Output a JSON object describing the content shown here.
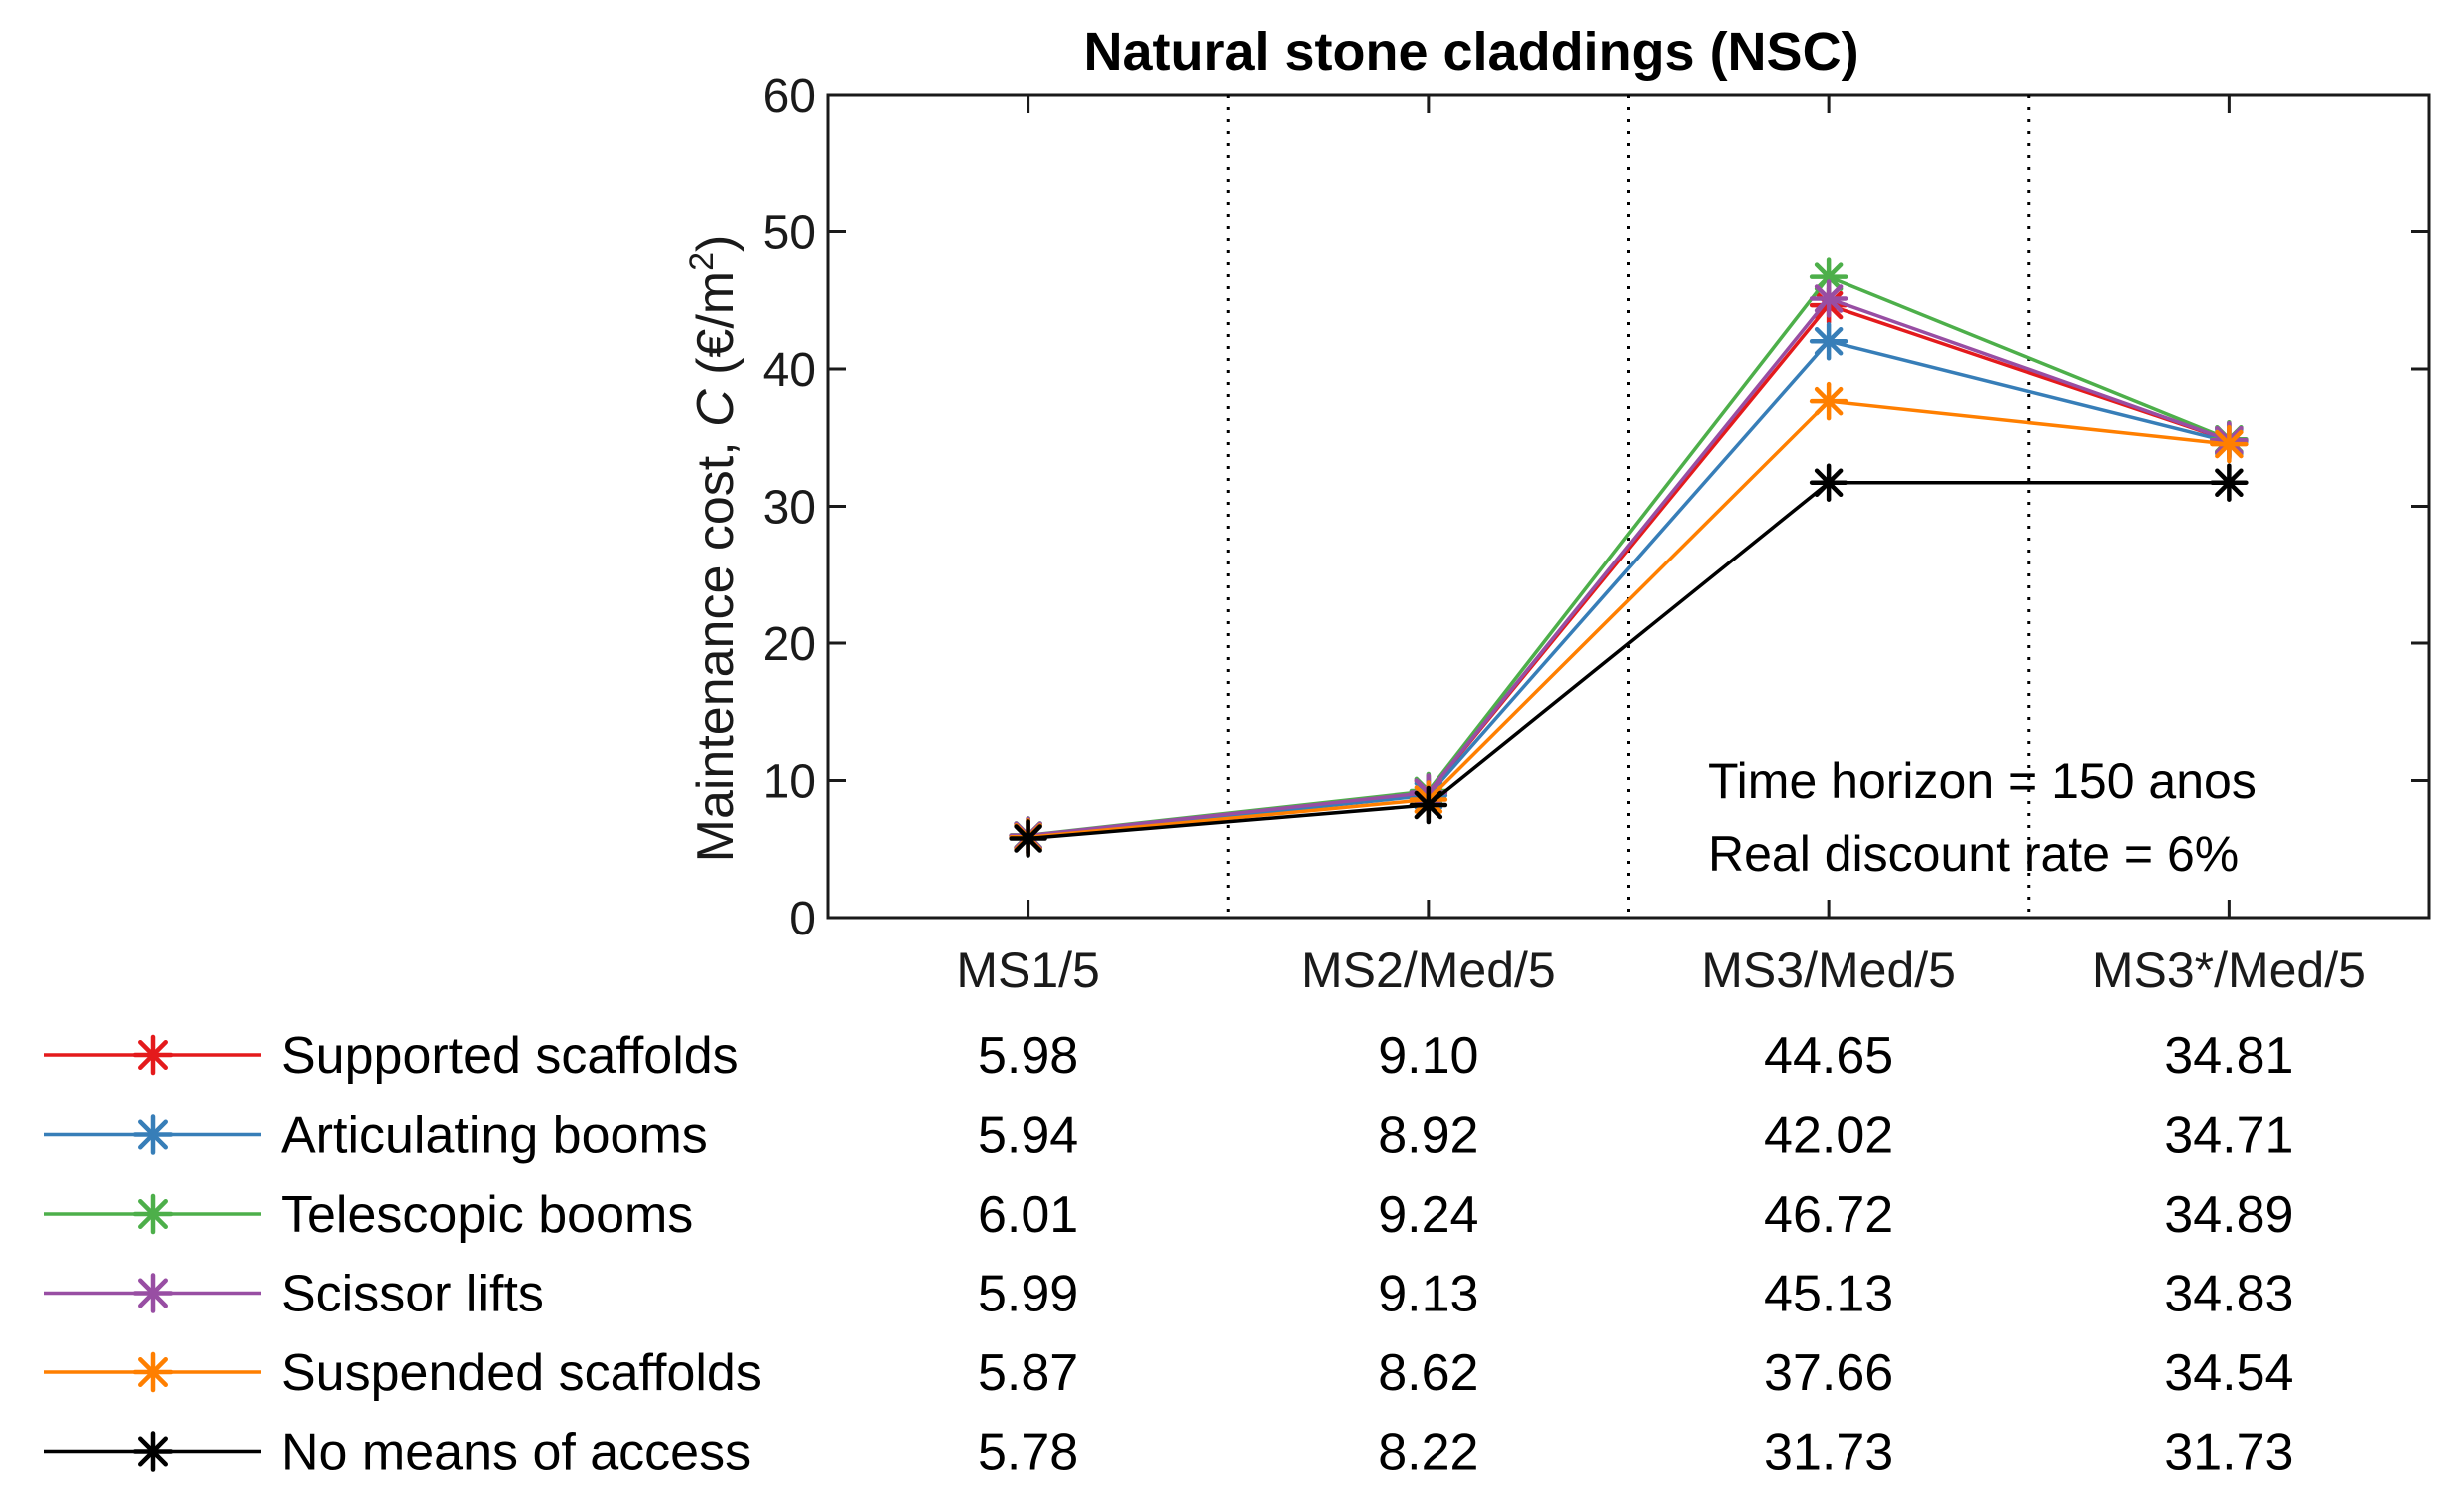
{
  "chart_data": {
    "type": "line",
    "title": "Natural stone claddings (NSC)",
    "ylabel_prefix": "Maintenance cost, ",
    "ylabel_var": "C",
    "ylabel_unit": " (€/m",
    "ylabel_sup": "2",
    "ylabel_close": ")",
    "ylim": [
      0,
      60
    ],
    "yticks": [
      0,
      10,
      20,
      30,
      40,
      50,
      60
    ],
    "categories": [
      "MS1/5",
      "MS2/Med/5",
      "MS3/Med/5",
      "MS3*/Med/5"
    ],
    "grid": "dotted vertical separators between categories",
    "annotation": [
      "Time horizon = 150 anos",
      "Real discount rate = 6%"
    ],
    "legend_placement": "bottom-left table",
    "series": [
      {
        "name": "Supported scaffolds",
        "color": "#e41a1c",
        "values": [
          5.98,
          9.1,
          44.65,
          34.81
        ],
        "labels": [
          "5.98",
          "9.10",
          "44.65",
          "34.81"
        ]
      },
      {
        "name": "Articulating booms",
        "color": "#377eb8",
        "values": [
          5.94,
          8.92,
          42.02,
          34.71
        ],
        "labels": [
          "5.94",
          "8.92",
          "42.02",
          "34.71"
        ]
      },
      {
        "name": "Telescopic booms",
        "color": "#4daf4a",
        "values": [
          6.01,
          9.24,
          46.72,
          34.89
        ],
        "labels": [
          "6.01",
          "9.24",
          "46.72",
          "34.89"
        ]
      },
      {
        "name": "Scissor lifts",
        "color": "#984ea3",
        "values": [
          5.99,
          9.13,
          45.13,
          34.83
        ],
        "labels": [
          "5.99",
          "9.13",
          "45.13",
          "34.83"
        ]
      },
      {
        "name": "Suspended scaffolds",
        "color": "#ff7f00",
        "values": [
          5.87,
          8.62,
          37.66,
          34.54
        ],
        "labels": [
          "5.87",
          "8.62",
          "37.66",
          "34.54"
        ]
      },
      {
        "name": "No means of access",
        "color": "#000000",
        "values": [
          5.78,
          8.22,
          31.73,
          31.73
        ],
        "labels": [
          "5.78",
          "8.22",
          "31.73",
          "31.73"
        ]
      }
    ]
  }
}
